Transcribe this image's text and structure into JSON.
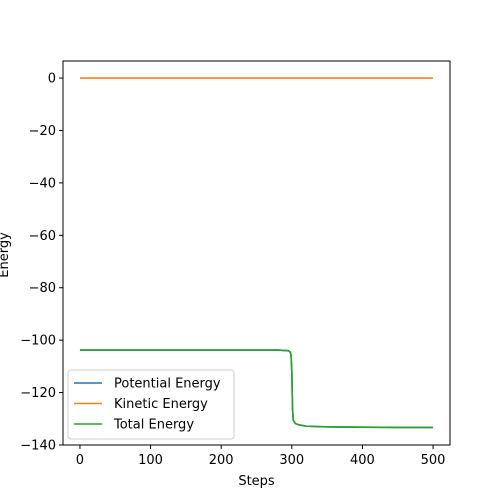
{
  "chart_data": {
    "type": "line",
    "xlabel": "Steps",
    "ylabel": "Energy",
    "xlim": [
      -24,
      524
    ],
    "ylim": [
      -140,
      6.5
    ],
    "xticks": [
      0,
      100,
      200,
      300,
      400,
      500
    ],
    "yticks": [
      0,
      -20,
      -40,
      -60,
      -80,
      -100,
      -120,
      -140
    ],
    "grid": false,
    "legend_position": "lower-left",
    "series": [
      {
        "name": "Potential Energy",
        "color": "#1f77b4",
        "x": [
          0,
          100,
          200,
          280,
          295,
          298,
          299,
          300,
          301,
          302,
          305,
          310,
          320,
          340,
          360,
          400,
          450,
          500
        ],
        "y": [
          -103.8,
          -103.8,
          -103.8,
          -103.8,
          -104.0,
          -104.6,
          -106.0,
          -112.0,
          -126.0,
          -130.5,
          -131.8,
          -132.3,
          -132.8,
          -133.0,
          -133.1,
          -133.2,
          -133.3,
          -133.3
        ]
      },
      {
        "name": "Kinetic Energy",
        "color": "#ff7f0e",
        "x": [
          0,
          100,
          200,
          300,
          400,
          500
        ],
        "y": [
          0,
          0,
          0,
          0,
          0,
          0
        ]
      },
      {
        "name": "Total Energy",
        "color": "#2ca02c",
        "x": [
          0,
          100,
          200,
          280,
          295,
          298,
          299,
          300,
          301,
          302,
          305,
          310,
          320,
          340,
          360,
          400,
          450,
          500
        ],
        "y": [
          -103.8,
          -103.8,
          -103.8,
          -103.8,
          -104.0,
          -104.6,
          -106.0,
          -112.0,
          -126.0,
          -130.5,
          -131.8,
          -132.3,
          -132.8,
          -133.0,
          -133.1,
          -133.2,
          -133.3,
          -133.3
        ]
      }
    ]
  }
}
